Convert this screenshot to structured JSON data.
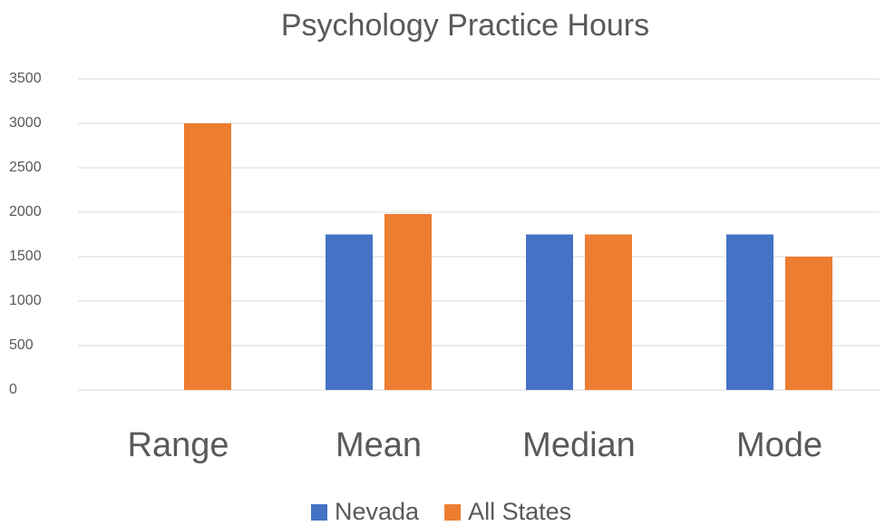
{
  "chart_data": {
    "type": "bar",
    "title": "Psychology Practice Hours",
    "categories": [
      "Range",
      "Mean",
      "Median",
      "Mode"
    ],
    "series": [
      {
        "name": "Nevada",
        "color": "#4472c4",
        "values": [
          0,
          1750,
          1750,
          1750
        ]
      },
      {
        "name": "All States",
        "color": "#ed7d31",
        "values": [
          3000,
          1980,
          1750,
          1500
        ]
      }
    ],
    "ylim": [
      0,
      3500
    ],
    "yticks": [
      0,
      500,
      1000,
      1500,
      2000,
      2500,
      3000,
      3500
    ],
    "grid": true,
    "legend": "bottom"
  }
}
